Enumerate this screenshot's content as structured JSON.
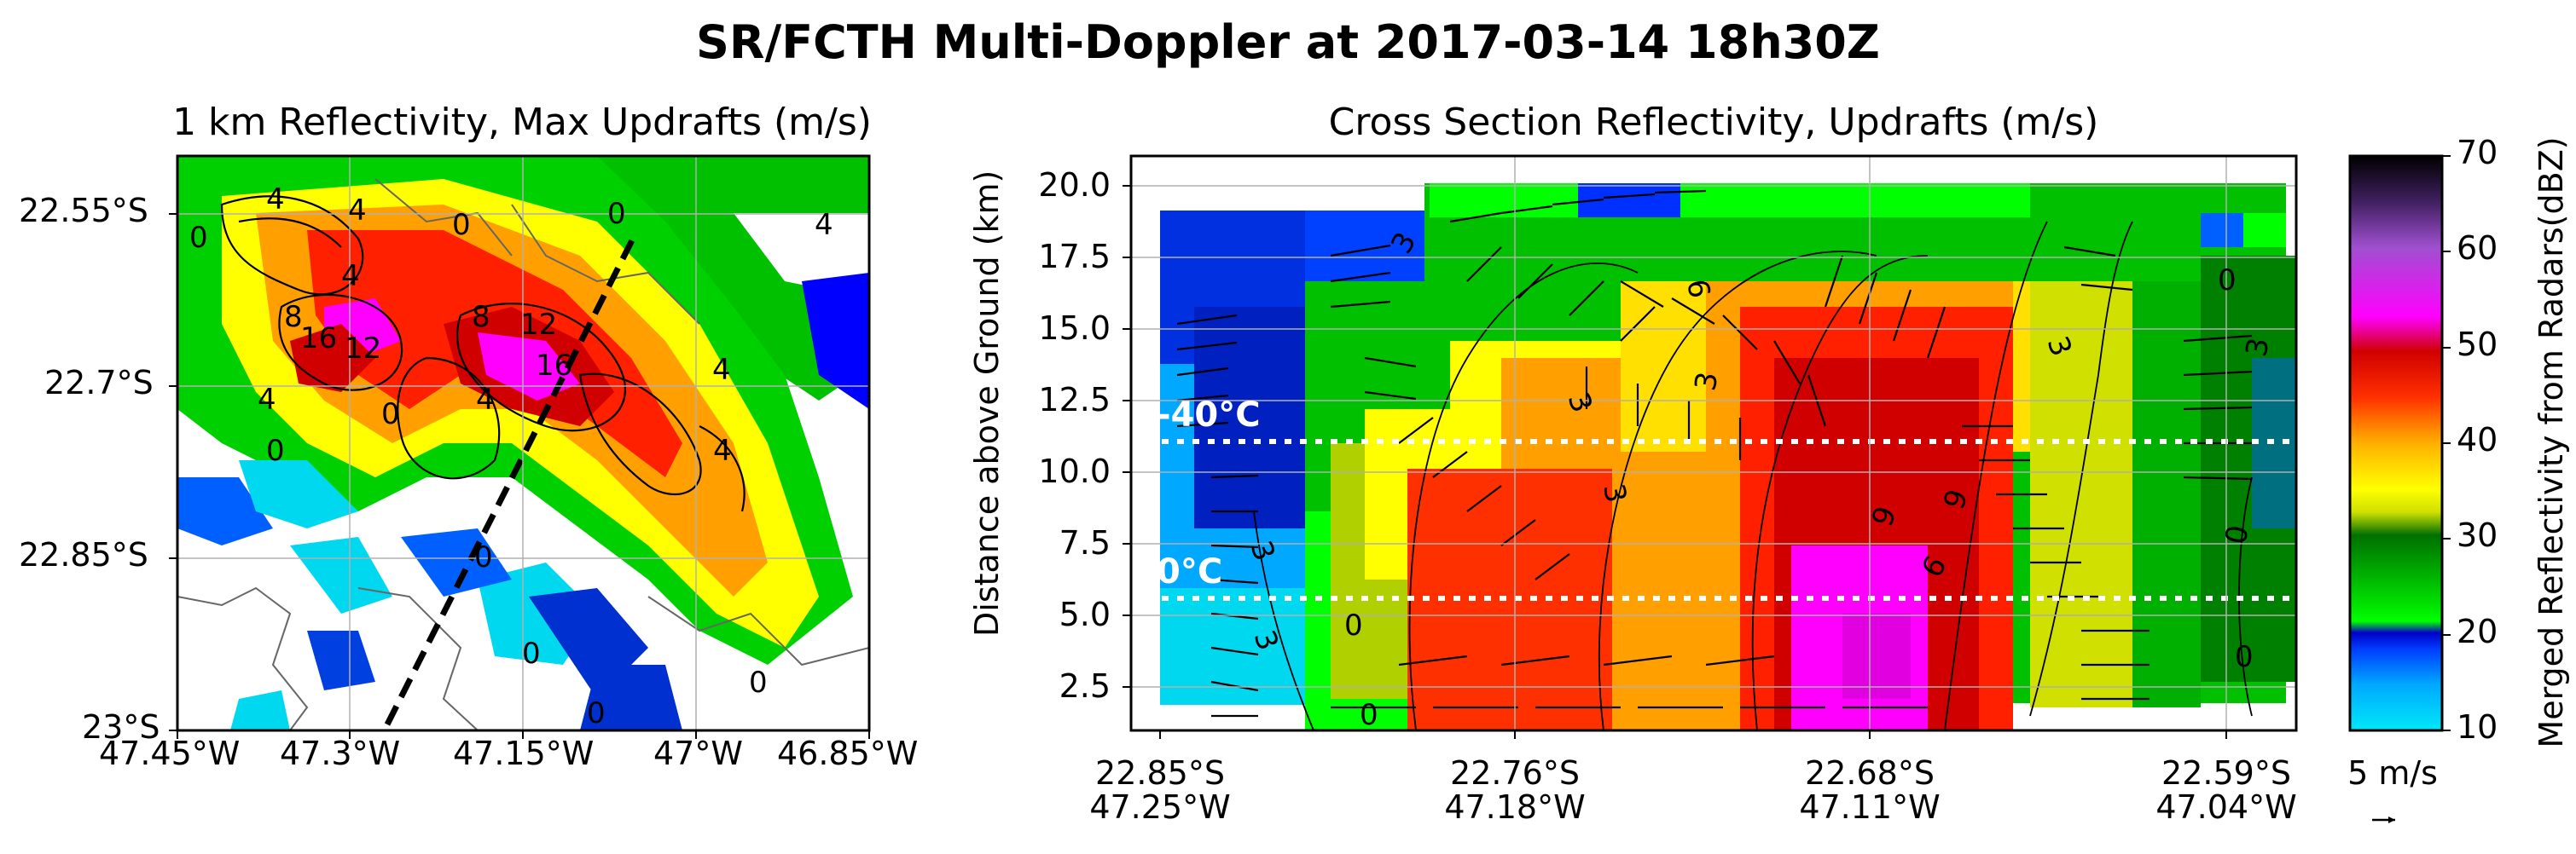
{
  "figure": {
    "title": "SR/FCTH Multi-Doppler at 2017-03-14 18h30Z"
  },
  "chart_data": [
    {
      "type": "heatmap",
      "title": "1 km Reflectivity, Max Updrafts (m/s)",
      "x_ticks": [
        "47.45°W",
        "47.3°W",
        "47.15°W",
        "47°W",
        "46.85°W"
      ],
      "y_ticks": [
        "22.55°S",
        "22.7°S",
        "22.85°S",
        "23°S"
      ],
      "xlim": [
        -47.45,
        -46.85
      ],
      "ylim": [
        -23.0,
        -22.5
      ],
      "contour_labels": [
        "4",
        "4",
        "0",
        "0",
        "4",
        "0",
        "4",
        "8",
        "16",
        "12",
        "8",
        "12",
        "16",
        "0",
        "4",
        "4",
        "0",
        "4",
        "0",
        "0",
        "0",
        "4",
        "0"
      ],
      "cross_section_line": {
        "start": [
          -47.22,
          -22.97
        ],
        "end": [
          -47.04,
          -22.57
        ]
      },
      "grid": true
    },
    {
      "type": "heatmap",
      "title": "Cross Section Reflectivity, Updrafts (m/s)",
      "ylabel": "Distance above Ground (km)",
      "y_ticks": [
        "2.5",
        "5.0",
        "7.5",
        "10.0",
        "12.5",
        "15.0",
        "17.5",
        "20.0"
      ],
      "ylim": [
        0.5,
        20.5
      ],
      "x_ticks": [
        {
          "lat": "22.85°S",
          "lon": "47.25°W"
        },
        {
          "lat": "22.76°S",
          "lon": "47.18°W"
        },
        {
          "lat": "22.68°S",
          "lon": "47.11°W"
        },
        {
          "lat": "22.59°S",
          "lon": "47.04°W"
        }
      ],
      "isotherms": [
        {
          "label": "-40°C",
          "height_km": 10.6
        },
        {
          "label": "0°C",
          "height_km": 5.2
        }
      ],
      "contour_labels": [
        "3",
        "3",
        "6",
        "9",
        "3",
        "3",
        "0",
        "3",
        "9",
        "6",
        "3",
        "0",
        "0",
        "3",
        "0",
        "0",
        "3"
      ],
      "vector_key": "5 m/s",
      "grid": true
    }
  ],
  "colorbar": {
    "label": "Merged Reflectivity from Radars(dBZ)",
    "ticks": [
      "10",
      "20",
      "30",
      "40",
      "50",
      "60",
      "70"
    ],
    "range": [
      10,
      70
    ],
    "stops": [
      "#00e8f8",
      "#0040ff",
      "#0000c8",
      "#00ff00",
      "#00b000",
      "#007000",
      "#ffff00",
      "#ffa000",
      "#ff0000",
      "#c00000",
      "#ff00ff",
      "#9040c0",
      "#000000"
    ]
  }
}
